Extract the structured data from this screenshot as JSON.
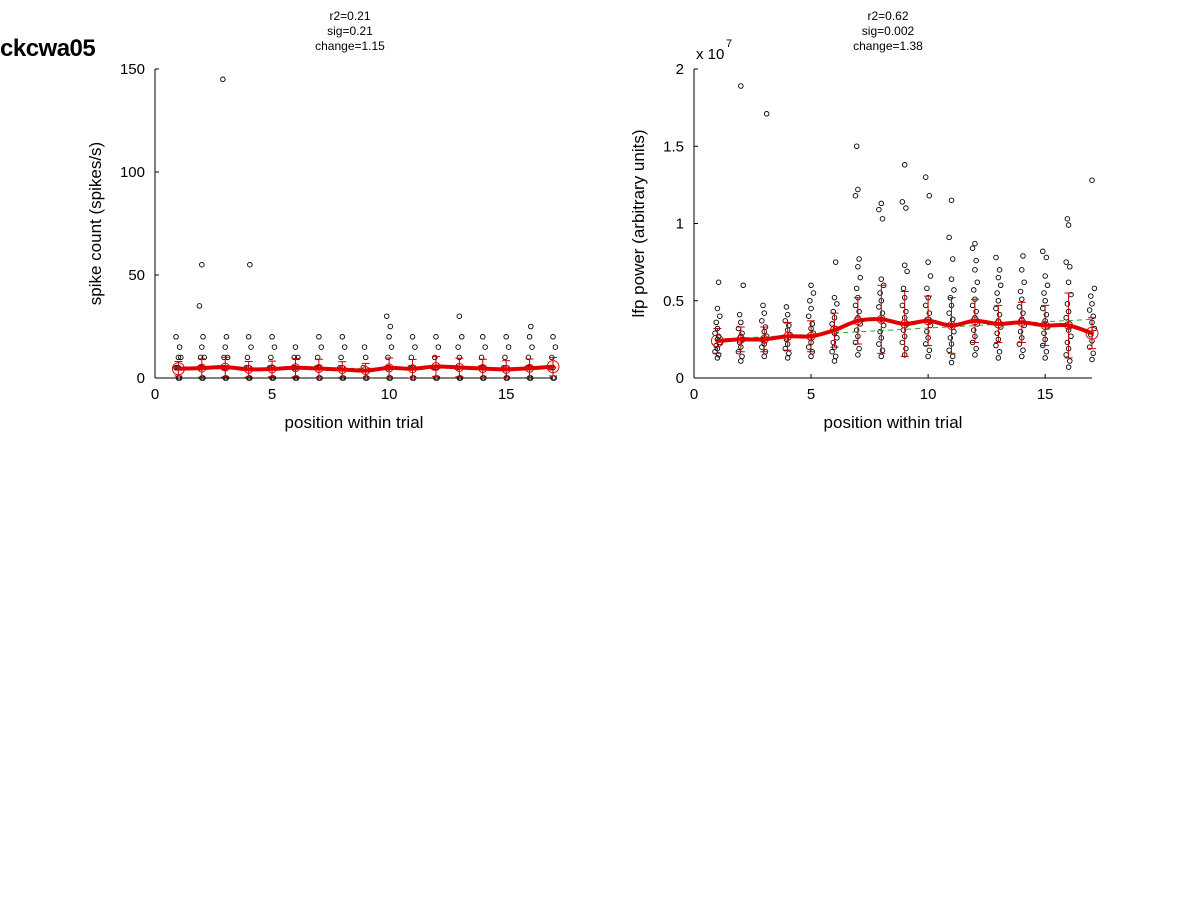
{
  "figure": {
    "title": "ckcwa05"
  },
  "chart_data": [
    {
      "type": "scatter",
      "stats": [
        "r2=0.21",
        "sig=0.21",
        "change=1.15"
      ],
      "xlabel": "position within trial",
      "ylabel": "spike count (spikes/s)",
      "exponent_label": "",
      "xlim": [
        0,
        17
      ],
      "ylim": [
        0,
        150
      ],
      "xticks": [
        0,
        5,
        10,
        15
      ],
      "yticks": [
        0,
        50,
        100,
        150
      ],
      "ytick_labels": [
        "0",
        "50",
        "100",
        "150"
      ],
      "mean_color": "#e00000",
      "scatter": [
        {
          "x": 1,
          "y": [
            0,
            0,
            5,
            5,
            5,
            10,
            10,
            15,
            20
          ]
        },
        {
          "x": 2,
          "y": [
            0,
            0,
            5,
            5,
            10,
            10,
            15,
            20,
            35,
            55
          ]
        },
        {
          "x": 3,
          "y": [
            0,
            0,
            5,
            5,
            10,
            10,
            15,
            20,
            145
          ]
        },
        {
          "x": 4,
          "y": [
            0,
            0,
            5,
            5,
            10,
            15,
            20,
            55
          ]
        },
        {
          "x": 5,
          "y": [
            0,
            0,
            5,
            5,
            10,
            15,
            20
          ]
        },
        {
          "x": 6,
          "y": [
            0,
            0,
            5,
            5,
            10,
            10,
            15
          ]
        },
        {
          "x": 7,
          "y": [
            0,
            0,
            5,
            5,
            10,
            15,
            20
          ]
        },
        {
          "x": 8,
          "y": [
            0,
            0,
            5,
            5,
            10,
            15,
            20
          ]
        },
        {
          "x": 9,
          "y": [
            0,
            0,
            5,
            10,
            15
          ]
        },
        {
          "x": 10,
          "y": [
            0,
            0,
            5,
            5,
            10,
            15,
            20,
            25,
            30
          ]
        },
        {
          "x": 11,
          "y": [
            0,
            0,
            5,
            5,
            10,
            15,
            20
          ]
        },
        {
          "x": 12,
          "y": [
            0,
            0,
            5,
            5,
            10,
            15,
            20
          ]
        },
        {
          "x": 13,
          "y": [
            0,
            0,
            5,
            10,
            15,
            20,
            30
          ]
        },
        {
          "x": 14,
          "y": [
            0,
            0,
            5,
            5,
            10,
            15,
            20
          ]
        },
        {
          "x": 15,
          "y": [
            0,
            0,
            5,
            5,
            10,
            15,
            20
          ]
        },
        {
          "x": 16,
          "y": [
            0,
            0,
            5,
            5,
            10,
            15,
            20,
            25
          ]
        },
        {
          "x": 17,
          "y": [
            0,
            0,
            5,
            5,
            10,
            15,
            20
          ]
        }
      ],
      "mean_x": [
        1,
        2,
        3,
        4,
        5,
        6,
        7,
        8,
        9,
        10,
        11,
        12,
        13,
        14,
        15,
        16,
        17
      ],
      "mean": [
        4.5,
        4.8,
        5.3,
        4.2,
        4.4,
        5.0,
        4.6,
        4.1,
        3.6,
        4.9,
        4.5,
        5.6,
        5.1,
        4.6,
        4.2,
        4.7,
        5.5
      ],
      "err": [
        3.5,
        4.5,
        4.8,
        3.8,
        3.8,
        4.5,
        4.5,
        3.8,
        3.5,
        4.8,
        4.5,
        4.8,
        4.5,
        4.5,
        4.2,
        4.5,
        4.5
      ],
      "fit": {
        "x": [
          1,
          17
        ],
        "y": [
          4.4,
          5.0
        ]
      }
    },
    {
      "type": "scatter",
      "stats": [
        "r2=0.62",
        "sig=0.002",
        "change=1.38"
      ],
      "xlabel": "position within trial",
      "ylabel": "lfp power (arbitrary units)",
      "exponent_label": "x 10",
      "exponent_power": "7",
      "xlim": [
        0,
        17
      ],
      "ylim": [
        0,
        2
      ],
      "xticks": [
        0,
        5,
        10,
        15
      ],
      "yticks": [
        0,
        0.5,
        1,
        1.5,
        2
      ],
      "ytick_labels": [
        "0",
        "0.5",
        "1",
        "1.5",
        "2"
      ],
      "mean_color": "#e00000",
      "scatter": [
        {
          "x": 1,
          "y": [
            0.13,
            0.15,
            0.17,
            0.19,
            0.21,
            0.23,
            0.25,
            0.27,
            0.29,
            0.32,
            0.36,
            0.4,
            0.45,
            0.62
          ]
        },
        {
          "x": 2,
          "y": [
            0.11,
            0.14,
            0.17,
            0.2,
            0.23,
            0.25,
            0.27,
            0.29,
            0.32,
            0.36,
            0.41,
            0.6,
            1.89
          ]
        },
        {
          "x": 3,
          "y": [
            0.14,
            0.17,
            0.2,
            0.22,
            0.25,
            0.27,
            0.3,
            0.33,
            0.37,
            0.42,
            0.47,
            1.71
          ]
        },
        {
          "x": 4,
          "y": [
            0.13,
            0.16,
            0.19,
            0.22,
            0.25,
            0.28,
            0.31,
            0.34,
            0.37,
            0.41,
            0.46
          ]
        },
        {
          "x": 5,
          "y": [
            0.14,
            0.17,
            0.2,
            0.23,
            0.26,
            0.29,
            0.32,
            0.35,
            0.4,
            0.45,
            0.5,
            0.55,
            0.6
          ]
        },
        {
          "x": 6,
          "y": [
            0.11,
            0.14,
            0.17,
            0.2,
            0.23,
            0.26,
            0.29,
            0.32,
            0.35,
            0.39,
            0.43,
            0.48,
            0.52,
            0.75
          ]
        },
        {
          "x": 7,
          "y": [
            0.15,
            0.19,
            0.23,
            0.27,
            0.31,
            0.35,
            0.39,
            0.43,
            0.47,
            0.52,
            0.58,
            0.65,
            0.72,
            0.77,
            1.18,
            1.22,
            1.5
          ]
        },
        {
          "x": 8,
          "y": [
            0.14,
            0.18,
            0.22,
            0.26,
            0.3,
            0.34,
            0.38,
            0.42,
            0.46,
            0.5,
            0.55,
            0.6,
            0.64,
            1.03,
            1.09,
            1.13
          ]
        },
        {
          "x": 9,
          "y": [
            0.15,
            0.19,
            0.23,
            0.27,
            0.31,
            0.35,
            0.39,
            0.43,
            0.47,
            0.52,
            0.58,
            0.69,
            0.73,
            1.1,
            1.14,
            1.38
          ]
        },
        {
          "x": 10,
          "y": [
            0.14,
            0.18,
            0.22,
            0.26,
            0.3,
            0.34,
            0.38,
            0.42,
            0.47,
            0.52,
            0.58,
            0.66,
            0.75,
            1.18,
            1.3
          ]
        },
        {
          "x": 11,
          "y": [
            0.1,
            0.14,
            0.18,
            0.22,
            0.26,
            0.3,
            0.34,
            0.38,
            0.42,
            0.47,
            0.52,
            0.57,
            0.64,
            0.77,
            0.91,
            1.15
          ]
        },
        {
          "x": 12,
          "y": [
            0.15,
            0.19,
            0.23,
            0.27,
            0.31,
            0.35,
            0.39,
            0.43,
            0.47,
            0.51,
            0.57,
            0.62,
            0.7,
            0.76,
            0.84,
            0.87
          ]
        },
        {
          "x": 13,
          "y": [
            0.13,
            0.17,
            0.21,
            0.25,
            0.29,
            0.33,
            0.37,
            0.41,
            0.45,
            0.5,
            0.55,
            0.6,
            0.65,
            0.7,
            0.78
          ]
        },
        {
          "x": 14,
          "y": [
            0.14,
            0.18,
            0.22,
            0.26,
            0.3,
            0.34,
            0.38,
            0.42,
            0.46,
            0.51,
            0.56,
            0.62,
            0.7,
            0.79
          ]
        },
        {
          "x": 15,
          "y": [
            0.13,
            0.17,
            0.21,
            0.25,
            0.29,
            0.33,
            0.37,
            0.41,
            0.45,
            0.5,
            0.55,
            0.6,
            0.66,
            0.78,
            0.82
          ]
        },
        {
          "x": 16,
          "y": [
            0.07,
            0.11,
            0.15,
            0.19,
            0.23,
            0.27,
            0.31,
            0.35,
            0.39,
            0.43,
            0.48,
            0.54,
            0.62,
            0.72,
            0.75,
            0.99,
            1.03
          ]
        },
        {
          "x": 17,
          "y": [
            0.12,
            0.16,
            0.2,
            0.24,
            0.28,
            0.32,
            0.36,
            0.4,
            0.44,
            0.48,
            0.53,
            0.58,
            1.28
          ]
        }
      ],
      "mean_x": [
        1,
        2,
        3,
        4,
        5,
        6,
        7,
        8,
        9,
        10,
        11,
        12,
        13,
        14,
        15,
        16,
        17
      ],
      "mean": [
        0.24,
        0.25,
        0.25,
        0.27,
        0.27,
        0.31,
        0.37,
        0.38,
        0.35,
        0.37,
        0.34,
        0.37,
        0.35,
        0.36,
        0.34,
        0.34,
        0.29
      ],
      "err": [
        0.08,
        0.08,
        0.08,
        0.09,
        0.1,
        0.11,
        0.15,
        0.22,
        0.21,
        0.16,
        0.18,
        0.14,
        0.12,
        0.13,
        0.13,
        0.21,
        0.1
      ],
      "fit": {
        "x": [
          1,
          17
        ],
        "y": [
          0.25,
          0.38
        ]
      }
    }
  ]
}
